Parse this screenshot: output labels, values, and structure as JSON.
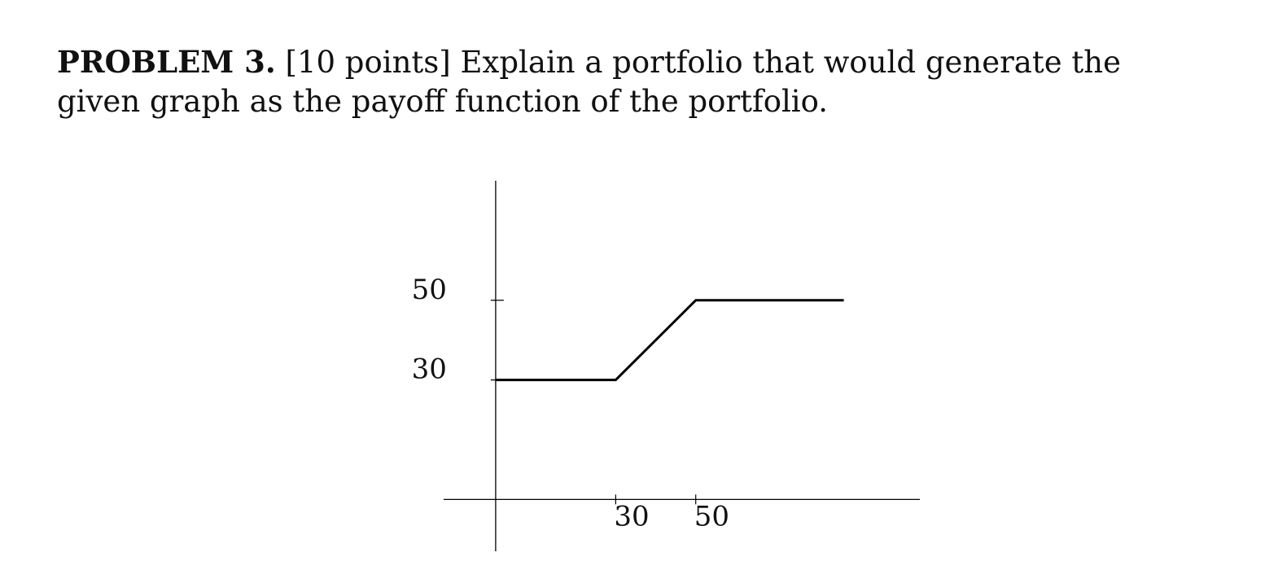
{
  "problem": {
    "label": "PROBLEM 3.",
    "text": "[10 points] Explain a portfolio that would generate the given graph as the payoff function of the portfolio."
  },
  "chart_data": {
    "type": "line",
    "title": "",
    "xlabel": "",
    "ylabel": "",
    "xlim": [
      -13,
      106
    ],
    "ylim": [
      -13,
      80
    ],
    "x_ticks": [
      30,
      50
    ],
    "x_tick_labels": [
      "30",
      "50"
    ],
    "y_ticks": [
      30,
      50
    ],
    "y_tick_labels": [
      "30",
      "50"
    ],
    "grid": false,
    "legend": "none",
    "line_color": "#000000",
    "series": [
      {
        "x": [
          0,
          30,
          50,
          87
        ],
        "y": [
          30,
          30,
          50,
          50
        ]
      }
    ]
  }
}
